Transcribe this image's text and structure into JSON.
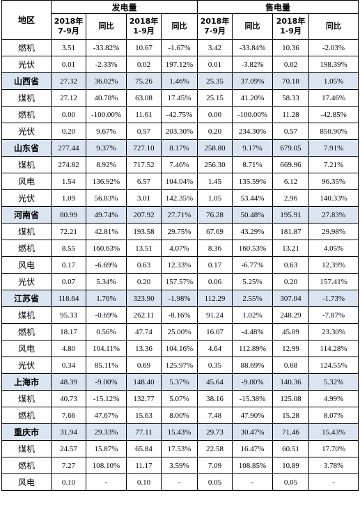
{
  "header": {
    "region": "地区",
    "groups": [
      "发电量",
      "售电量"
    ],
    "subcols": [
      "2018年\n7-9月",
      "同比",
      "2018年\n1-9月",
      "同比",
      "2018年\n7-9月",
      "同比",
      "2018年\n1-9月",
      "同比"
    ]
  },
  "rows": [
    {
      "region": "燃机",
      "province": false,
      "values": [
        "3.51",
        "-33.82%",
        "10.67",
        "-1.67%",
        "3.42",
        "-33.84%",
        "10.36",
        "-2.03%"
      ]
    },
    {
      "region": "光伏",
      "province": false,
      "values": [
        "0.01",
        "-2.33%",
        "0.02",
        "197.12%",
        "0.01",
        "-3.82%",
        "0.02",
        "198.39%"
      ]
    },
    {
      "region": "山西省",
      "province": true,
      "values": [
        "27.32",
        "36.02%",
        "75.26",
        "1.46%",
        "25.35",
        "37.09%",
        "70.18",
        "1.05%"
      ]
    },
    {
      "region": "煤机",
      "province": false,
      "values": [
        "27.12",
        "40.78%",
        "63.08",
        "17.45%",
        "25.15",
        "41.20%",
        "58.33",
        "17.46%"
      ]
    },
    {
      "region": "燃机",
      "province": false,
      "values": [
        "0.00",
        "-100.00%",
        "11.61",
        "-42.75%",
        "0.00",
        "-100.00%",
        "11.28",
        "-42.85%"
      ]
    },
    {
      "region": "光伏",
      "province": false,
      "values": [
        "0.20",
        "9.67%",
        "0.57",
        "203.30%",
        "0.20",
        "234.30%",
        "0.57",
        "850.90%"
      ]
    },
    {
      "region": "山东省",
      "province": true,
      "values": [
        "277.44",
        "9.37%",
        "727.10",
        "8.17%",
        "258.80",
        "9.17%",
        "679.05",
        "7.91%"
      ]
    },
    {
      "region": "煤机",
      "province": false,
      "values": [
        "274.82",
        "8.92%",
        "717.52",
        "7.46%",
        "256.30",
        "8.71%",
        "669.96",
        "7.21%"
      ]
    },
    {
      "region": "风电",
      "province": false,
      "values": [
        "1.54",
        "136.92%",
        "6.57",
        "104.04%",
        "1.45",
        "135.59%",
        "6.12",
        "96.35%"
      ]
    },
    {
      "region": "光伏",
      "province": false,
      "values": [
        "1.09",
        "56.83%",
        "3.01",
        "142.35%",
        "1.05",
        "53.44%",
        "2.96",
        "140.33%"
      ]
    },
    {
      "region": "河南省",
      "province": true,
      "values": [
        "80.99",
        "49.74%",
        "207.92",
        "27.71%",
        "76.28",
        "50.48%",
        "195.91",
        "27.83%"
      ]
    },
    {
      "region": "煤机",
      "province": false,
      "values": [
        "72.21",
        "42.81%",
        "193.58",
        "29.75%",
        "67.69",
        "43.29%",
        "181.87",
        "29.98%"
      ]
    },
    {
      "region": "燃机",
      "province": false,
      "values": [
        "8.55",
        "160.63%",
        "13.51",
        "4.07%",
        "8.36",
        "160.53%",
        "13.21",
        "4.05%"
      ]
    },
    {
      "region": "风电",
      "province": false,
      "values": [
        "0.17",
        "-6.69%",
        "0.63",
        "12.33%",
        "0.17",
        "-6.77%",
        "0.63",
        "12.39%"
      ]
    },
    {
      "region": "光伏",
      "province": false,
      "values": [
        "0.07",
        "5.34%",
        "0.20",
        "157.57%",
        "0.06",
        "5.25%",
        "0.20",
        "157.41%"
      ]
    },
    {
      "region": "江苏省",
      "province": true,
      "values": [
        "118.64",
        "1.76%",
        "323.90",
        "-1.98%",
        "112.29",
        "2.55%",
        "307.04",
        "-1.73%"
      ]
    },
    {
      "region": "煤机",
      "province": false,
      "values": [
        "95.33",
        "-0.69%",
        "262.11",
        "-8.16%",
        "91.24",
        "1.02%",
        "248.29",
        "-7.87%"
      ]
    },
    {
      "region": "燃机",
      "province": false,
      "values": [
        "18.17",
        "0.56%",
        "47.74",
        "25.00%",
        "16.07",
        "-4.48%",
        "45.09",
        "23.30%"
      ]
    },
    {
      "region": "风电",
      "province": false,
      "values": [
        "4.80",
        "104.11%",
        "13.36",
        "104.16%",
        "4.64",
        "112.89%",
        "12.99",
        "114.28%"
      ]
    },
    {
      "region": "光伏",
      "province": false,
      "values": [
        "0.34",
        "85.11%",
        "0.69",
        "125.97%",
        "0.35",
        "88.69%",
        "0.68",
        "124.55%"
      ]
    },
    {
      "region": "上海市",
      "province": true,
      "values": [
        "48.39",
        "-9.00%",
        "148.40",
        "5.37%",
        "45.64",
        "-9.00%",
        "140.36",
        "5.32%"
      ]
    },
    {
      "region": "煤机",
      "province": false,
      "values": [
        "40.73",
        "-15.12%",
        "132.77",
        "5.07%",
        "38.16",
        "-15.38%",
        "125.08",
        "4.99%"
      ]
    },
    {
      "region": "燃机",
      "province": false,
      "values": [
        "7.66",
        "47.67%",
        "15.63",
        "8.00%",
        "7.48",
        "47.90%",
        "15.28",
        "8.07%"
      ]
    },
    {
      "region": "重庆市",
      "province": true,
      "values": [
        "31.94",
        "29.33%",
        "77.11",
        "15.43%",
        "29.73",
        "30.47%",
        "71.46",
        "15.43%"
      ]
    },
    {
      "region": "煤机",
      "province": false,
      "values": [
        "24.57",
        "15.87%",
        "65.84",
        "17.53%",
        "22.58",
        "16.47%",
        "60.51",
        "17.70%"
      ]
    },
    {
      "region": "燃机",
      "province": false,
      "values": [
        "7.27",
        "108.10%",
        "11.17",
        "3.59%",
        "7.09",
        "108.85%",
        "10.89",
        "3.78%"
      ]
    },
    {
      "region": "风电",
      "province": false,
      "values": [
        "0.10",
        "-",
        "0.10",
        "-",
        "0.05",
        "-",
        "0.05",
        "-"
      ]
    }
  ]
}
